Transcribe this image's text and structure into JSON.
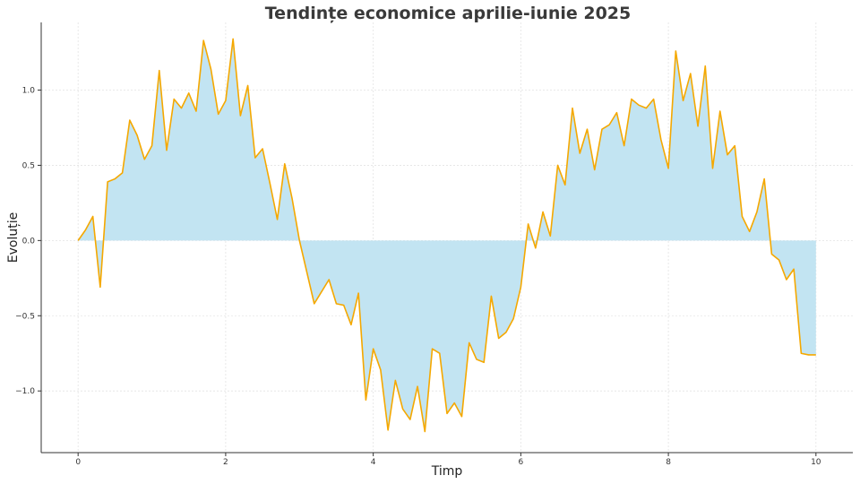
{
  "chart_data": {
    "type": "area",
    "title": "Tendințe economice aprilie-iunie 2025",
    "xlabel": "Timp",
    "ylabel": "Evoluție",
    "xlim": [
      -0.5,
      10.5
    ],
    "ylim": [
      -1.41,
      1.45
    ],
    "xticks": [
      0,
      2,
      4,
      6,
      8,
      10
    ],
    "xtick_labels": [
      "0",
      "2",
      "4",
      "6",
      "8",
      "10"
    ],
    "yticks": [
      -1.0,
      -0.5,
      0.0,
      0.5,
      1.0
    ],
    "ytick_labels": [
      "−1.0",
      "−0.5",
      "0.0",
      "0.5",
      "1.0"
    ],
    "grid": true,
    "colors": {
      "line": "#f5a800",
      "fill": "#c2e4f2",
      "grid": "#e3e3e3",
      "axis": "#333333"
    },
    "series": [
      {
        "x": [
          0,
          0.1,
          0.2,
          0.3,
          0.4,
          0.5,
          0.6,
          0.7,
          0.8,
          0.9,
          1.0,
          1.1,
          1.2,
          1.3,
          1.4,
          1.5,
          1.6,
          1.7,
          1.8,
          1.9,
          2.0,
          2.1,
          2.2,
          2.3,
          2.4,
          2.5,
          2.6,
          2.7,
          2.8,
          2.9,
          3.0,
          3.1,
          3.2,
          3.3,
          3.4,
          3.5,
          3.6,
          3.7,
          3.8,
          3.9,
          4.0,
          4.1,
          4.2,
          4.3,
          4.4,
          4.5,
          4.6,
          4.7,
          4.8,
          4.9,
          5.0,
          5.1,
          5.2,
          5.3,
          5.4,
          5.5,
          5.6,
          5.7,
          5.8,
          5.9,
          6.0,
          6.1,
          6.2,
          6.3,
          6.4,
          6.5,
          6.6,
          6.7,
          6.8,
          6.9,
          7.0,
          7.1,
          7.2,
          7.3,
          7.4,
          7.5,
          7.6,
          7.7,
          7.8,
          7.9,
          8.0,
          8.1,
          8.2,
          8.3,
          8.4,
          8.5,
          8.6,
          8.7,
          8.8,
          8.9,
          9.0,
          9.1,
          9.2,
          9.3,
          9.4,
          9.5,
          9.6,
          9.7,
          9.8,
          9.9,
          10.0
        ],
        "y": [
          0.0,
          0.07,
          0.16,
          -0.31,
          0.39,
          0.41,
          0.45,
          0.8,
          0.7,
          0.54,
          0.63,
          1.13,
          0.6,
          0.94,
          0.88,
          0.98,
          0.86,
          1.33,
          1.14,
          0.84,
          0.93,
          1.34,
          0.83,
          1.03,
          0.55,
          0.61,
          0.38,
          0.14,
          0.51,
          0.28,
          0.0,
          -0.21,
          -0.42,
          -0.34,
          -0.26,
          -0.42,
          -0.43,
          -0.56,
          -0.35,
          -1.06,
          -0.72,
          -0.86,
          -1.26,
          -0.93,
          -1.12,
          -1.19,
          -0.97,
          -1.27,
          -0.72,
          -0.75,
          -1.15,
          -1.08,
          -1.17,
          -0.68,
          -0.79,
          -0.81,
          -0.37,
          -0.65,
          -0.61,
          -0.52,
          -0.31,
          0.11,
          -0.05,
          0.19,
          0.03,
          0.5,
          0.37,
          0.88,
          0.58,
          0.74,
          0.47,
          0.74,
          0.77,
          0.85,
          0.63,
          0.94,
          0.9,
          0.88,
          0.94,
          0.67,
          0.48,
          1.26,
          0.93,
          1.11,
          0.76,
          1.16,
          0.48,
          0.86,
          0.57,
          0.63,
          0.16,
          0.06,
          0.19,
          0.41,
          -0.09,
          -0.13,
          -0.26,
          -0.19,
          -0.75,
          -0.76,
          -0.76
        ]
      }
    ]
  }
}
